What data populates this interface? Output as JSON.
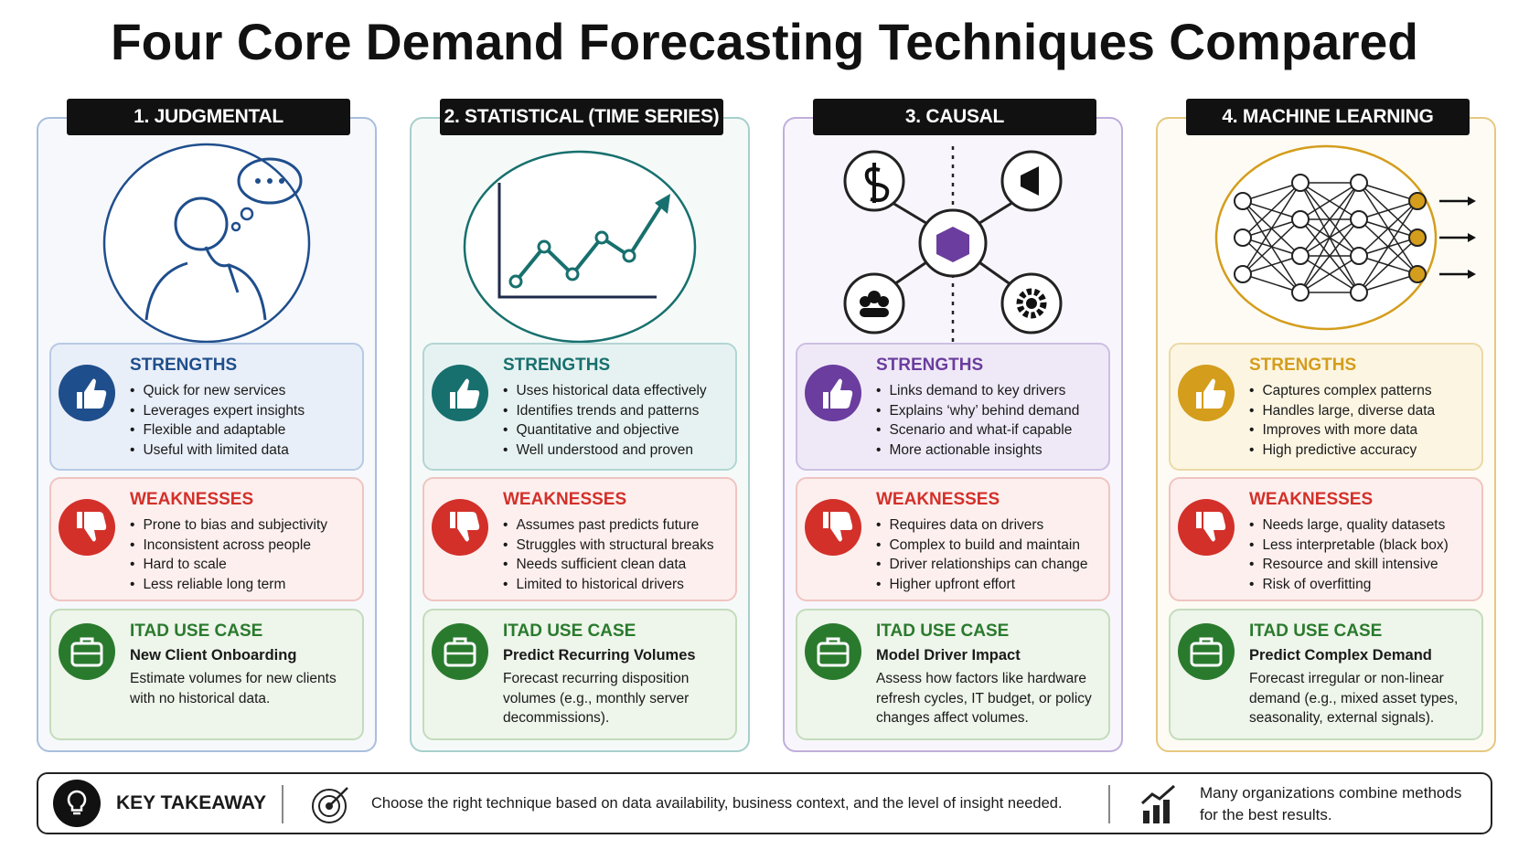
{
  "title": "Four Core Demand Forecasting Techniques Compared",
  "columns": [
    {
      "heading": "1. JUDGMENTAL",
      "strengths": {
        "title": "STRENGTHS",
        "items": [
          "Quick for new services",
          "Leverages expert insights",
          "Flexible and adaptable",
          "Useful with limited data"
        ]
      },
      "weaknesses": {
        "title": "WEAKNESSES",
        "items": [
          "Prone to bias and subjectivity",
          "Inconsistent across people",
          "Hard to scale",
          "Less reliable long term"
        ]
      },
      "use_case": {
        "title": "ITAD USE CASE",
        "name": "New Client Onboarding",
        "text": "Estimate volumes for new clients with no historical data."
      }
    },
    {
      "heading": "2. STATISTICAL (TIME SERIES)",
      "strengths": {
        "title": "STRENGTHS",
        "items": [
          "Uses historical data effectively",
          "Identifies trends and patterns",
          "Quantitative and objective",
          "Well understood and proven"
        ]
      },
      "weaknesses": {
        "title": "WEAKNESSES",
        "items": [
          "Assumes past predicts future",
          "Struggles with structural breaks",
          "Needs sufficient clean data",
          "Limited to historical drivers"
        ]
      },
      "use_case": {
        "title": "ITAD USE CASE",
        "name": "Predict Recurring Volumes",
        "text": "Forecast recurring disposition volumes (e.g., monthly server decommissions)."
      }
    },
    {
      "heading": "3. CAUSAL",
      "strengths": {
        "title": "STRENGTHS",
        "items": [
          "Links demand to key drivers",
          "Explains ‘why’ behind demand",
          "Scenario and what-if capable",
          "More actionable insights"
        ]
      },
      "weaknesses": {
        "title": "WEAKNESSES",
        "items": [
          "Requires data on drivers",
          "Complex to build and maintain",
          "Driver relationships can change",
          "Higher upfront effort"
        ]
      },
      "use_case": {
        "title": "ITAD USE CASE",
        "name": "Model Driver Impact",
        "text": "Assess how factors like hardware refresh cycles, IT budget, or policy changes affect volumes."
      }
    },
    {
      "heading": "4. MACHINE LEARNING",
      "strengths": {
        "title": "STRENGTHS",
        "items": [
          "Captures complex patterns",
          "Handles large, diverse data",
          "Improves with more data",
          "High predictive accuracy"
        ]
      },
      "weaknesses": {
        "title": "WEAKNESSES",
        "items": [
          "Needs large, quality datasets",
          "Less interpretable (black box)",
          "Resource and skill intensive",
          "Risk of overfitting"
        ]
      },
      "use_case": {
        "title": "ITAD USE CASE",
        "name": "Predict Complex Demand",
        "text": "Forecast irregular or non-linear demand (e.g., mixed asset types, seasonality, external signals)."
      }
    }
  ],
  "takeaway": {
    "label": "KEY TAKEAWAY",
    "text": "Choose the right technique based on data availability, business context, and the level of insight needed.",
    "note": "Many organizations combine methods for the best results."
  }
}
